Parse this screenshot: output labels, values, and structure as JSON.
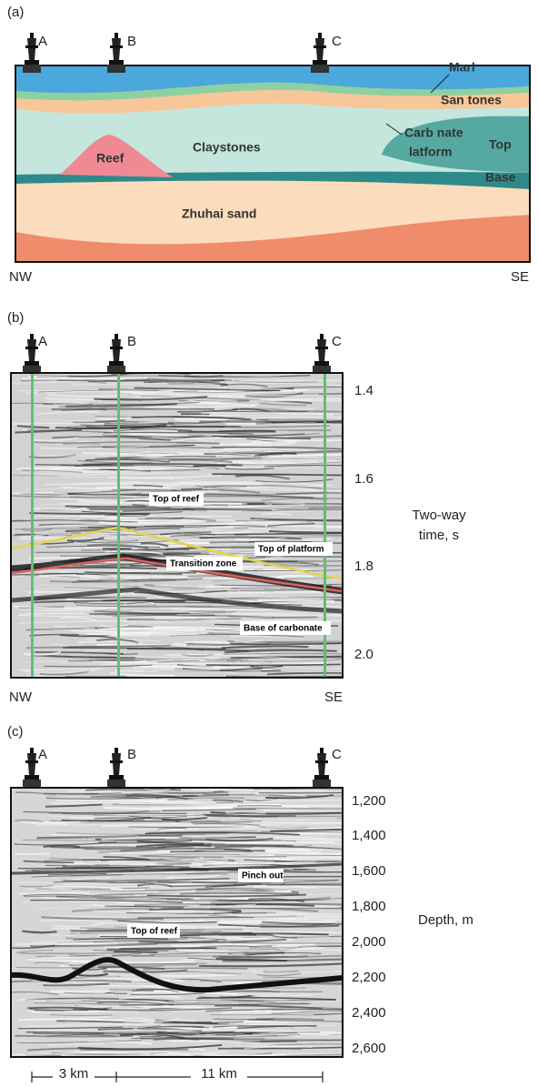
{
  "panel_a": {
    "label": "(a)",
    "wells": [
      "A",
      "B",
      "C"
    ],
    "layers": {
      "marl": "Marl",
      "sandstones": "San  tones",
      "carbonate_1": "Carb nate",
      "carbonate_2": "latform",
      "top": "Top",
      "base": "Base",
      "reef": "Reef",
      "claystones": "Claystones",
      "zhuhai": "Zhuhai sand"
    },
    "left": "NW",
    "right": "SE"
  },
  "panel_b": {
    "label": "(b)",
    "wells": [
      "A",
      "B",
      "C"
    ],
    "annotations": {
      "top_reef": "Top of reef",
      "top_platform": "Top of platform",
      "transition": "Transition zone",
      "base_carbonate": "Base of carbonate"
    },
    "ticks": [
      "1.4",
      "1.6",
      "1.8",
      "2.0"
    ],
    "axis_title": [
      "Two-way",
      "time, s"
    ],
    "left": "NW",
    "right": "SE"
  },
  "panel_c": {
    "label": "(c)",
    "wells": [
      "A",
      "B",
      "C"
    ],
    "annotations": {
      "pinch_out": "Pinch out",
      "top_reef": "Top of reef"
    },
    "ticks": [
      "1,200",
      "1,400",
      "1,600",
      "1,800",
      "2,000",
      "2,200",
      "2,400",
      "2,600"
    ],
    "axis_title": "Depth, m",
    "scale": [
      "3 km",
      "11 km"
    ]
  }
}
